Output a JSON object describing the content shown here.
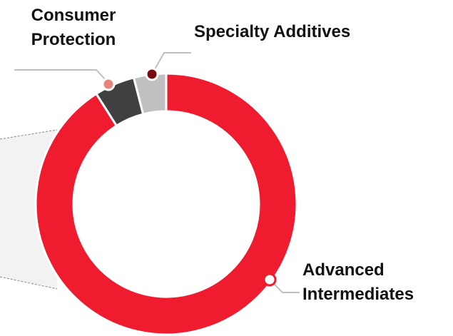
{
  "chart_data": {
    "type": "pie",
    "donut": true,
    "categories": [
      "Advanced Intermediates",
      "Consumer Protection",
      "Specialty Additives"
    ],
    "values": [
      91,
      5,
      4
    ],
    "colors": [
      "#ee1c2e",
      "#404040",
      "#c0c0c0"
    ]
  }
}
